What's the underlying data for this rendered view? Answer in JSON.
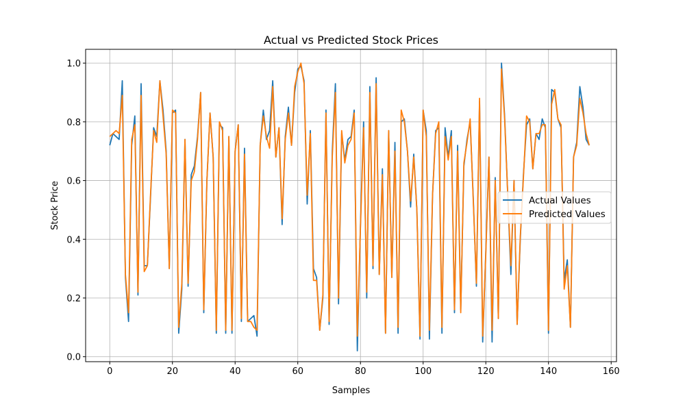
{
  "chart_data": {
    "type": "line",
    "title": "Actual vs Predicted Stock Prices",
    "xlabel": "Samples",
    "ylabel": "Stock Price",
    "xlim": [
      -7.7,
      161.7
    ],
    "ylim": [
      -0.017,
      1.047
    ],
    "xticks": [
      0,
      20,
      40,
      60,
      80,
      100,
      120,
      140,
      160
    ],
    "yticks": [
      0.0,
      0.2,
      0.4,
      0.6,
      0.8,
      1.0
    ],
    "grid": true,
    "legend_position": "center-right",
    "series": [
      {
        "name": "Actual Values",
        "color": "#1f77b4",
        "values": [
          0.72,
          0.76,
          0.75,
          0.74,
          0.94,
          0.27,
          0.12,
          0.72,
          0.82,
          0.21,
          0.93,
          0.31,
          0.31,
          0.54,
          0.78,
          0.75,
          0.94,
          0.84,
          0.7,
          0.3,
          0.83,
          0.84,
          0.08,
          0.23,
          0.74,
          0.24,
          0.62,
          0.65,
          0.75,
          0.9,
          0.15,
          0.6,
          0.83,
          0.68,
          0.08,
          0.79,
          0.78,
          0.08,
          0.75,
          0.08,
          0.7,
          0.79,
          0.12,
          0.71,
          0.12,
          0.13,
          0.14,
          0.07,
          0.72,
          0.84,
          0.74,
          0.77,
          0.94,
          0.68,
          0.78,
          0.45,
          0.75,
          0.85,
          0.72,
          0.9,
          0.98,
          0.99,
          0.94,
          0.52,
          0.77,
          0.3,
          0.27,
          0.09,
          0.2,
          0.84,
          0.11,
          0.7,
          0.93,
          0.18,
          0.76,
          0.67,
          0.74,
          0.75,
          0.84,
          0.02,
          0.45,
          0.8,
          0.2,
          0.92,
          0.3,
          0.95,
          0.28,
          0.64,
          0.08,
          0.77,
          0.27,
          0.73,
          0.08,
          0.8,
          0.81,
          0.7,
          0.51,
          0.69,
          0.5,
          0.06,
          0.84,
          0.77,
          0.06,
          0.55,
          0.77,
          0.78,
          0.08,
          0.78,
          0.68,
          0.77,
          0.15,
          0.72,
          0.16,
          0.65,
          0.74,
          0.8,
          0.54,
          0.24,
          0.87,
          0.05,
          0.36,
          0.68,
          0.05,
          0.61,
          0.13,
          1.0,
          0.82,
          0.55,
          0.28,
          0.6,
          0.11,
          0.4,
          0.62,
          0.79,
          0.81,
          0.64,
          0.76,
          0.74,
          0.81,
          0.78,
          0.08,
          0.91,
          0.9,
          0.81,
          0.78,
          0.26,
          0.33,
          0.1,
          0.68,
          0.73,
          0.92,
          0.85,
          0.74,
          0.72
        ]
      },
      {
        "name": "Predicted Values",
        "color": "#ff7f0e",
        "values": [
          0.75,
          0.76,
          0.77,
          0.76,
          0.89,
          0.28,
          0.15,
          0.74,
          0.79,
          0.22,
          0.89,
          0.29,
          0.31,
          0.55,
          0.77,
          0.73,
          0.94,
          0.82,
          0.69,
          0.3,
          0.84,
          0.83,
          0.1,
          0.25,
          0.74,
          0.25,
          0.6,
          0.63,
          0.74,
          0.9,
          0.16,
          0.6,
          0.83,
          0.68,
          0.09,
          0.8,
          0.77,
          0.09,
          0.75,
          0.09,
          0.7,
          0.79,
          0.13,
          0.69,
          0.12,
          0.12,
          0.1,
          0.09,
          0.72,
          0.82,
          0.75,
          0.71,
          0.92,
          0.68,
          0.78,
          0.47,
          0.74,
          0.83,
          0.72,
          0.92,
          0.97,
          1.0,
          0.93,
          0.55,
          0.76,
          0.26,
          0.26,
          0.09,
          0.21,
          0.83,
          0.12,
          0.68,
          0.9,
          0.2,
          0.77,
          0.66,
          0.72,
          0.74,
          0.83,
          0.07,
          0.44,
          0.78,
          0.22,
          0.9,
          0.31,
          0.93,
          0.28,
          0.62,
          0.08,
          0.77,
          0.27,
          0.7,
          0.1,
          0.84,
          0.8,
          0.7,
          0.53,
          0.68,
          0.5,
          0.07,
          0.84,
          0.75,
          0.09,
          0.55,
          0.76,
          0.8,
          0.1,
          0.75,
          0.67,
          0.75,
          0.16,
          0.7,
          0.15,
          0.66,
          0.73,
          0.81,
          0.53,
          0.25,
          0.88,
          0.07,
          0.35,
          0.68,
          0.09,
          0.6,
          0.13,
          0.98,
          0.81,
          0.55,
          0.31,
          0.6,
          0.11,
          0.41,
          0.61,
          0.82,
          0.8,
          0.64,
          0.76,
          0.76,
          0.79,
          0.79,
          0.09,
          0.86,
          0.91,
          0.81,
          0.79,
          0.23,
          0.31,
          0.1,
          0.68,
          0.72,
          0.88,
          0.83,
          0.76,
          0.72
        ]
      }
    ]
  }
}
